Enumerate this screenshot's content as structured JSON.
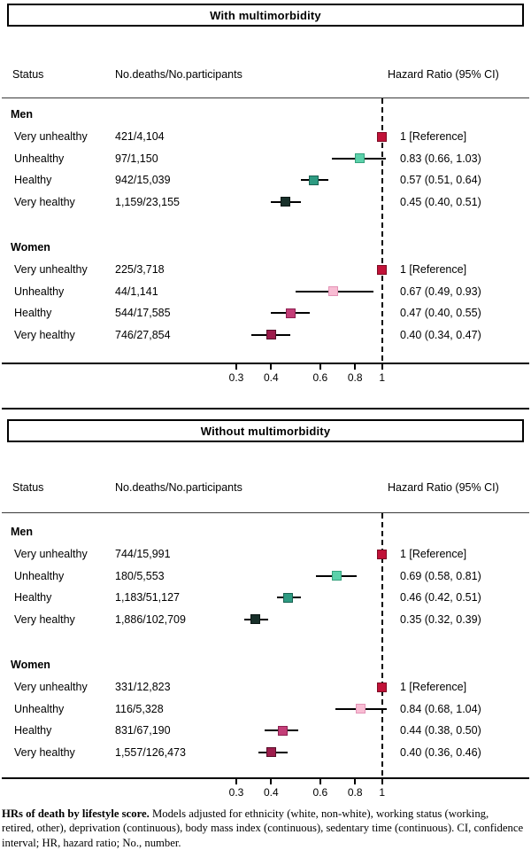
{
  "chart_data": {
    "type": "forest",
    "x_scale": "log",
    "x_axis": {
      "ticks": [
        0.3,
        0.4,
        0.6,
        0.8,
        1
      ],
      "tick_labels": [
        "0.3",
        "0.4",
        "0.6",
        "0.8",
        "1"
      ],
      "reference_line": 1
    },
    "columns": {
      "status": "Status",
      "counts": "No.deaths/No.participants",
      "hr": "Hazard Ratio (95% CI)"
    },
    "panels": [
      {
        "title": "With multimorbidity",
        "groups": [
          {
            "label": "Men",
            "rows": [
              {
                "status": "Very unhealthy",
                "counts": "421/4,104",
                "hr_label": "1 [Reference]",
                "hr": 1,
                "ci_low": null,
                "ci_high": null,
                "marker_fill": "#C11238",
                "marker_border": "#7E0B24"
              },
              {
                "status": "Unhealthy",
                "counts": "97/1,150",
                "hr_label": "0.83 (0.66, 1.03)",
                "hr": 0.83,
                "ci_low": 0.66,
                "ci_high": 1.03,
                "marker_fill": "#5BD1AA",
                "marker_border": "#36A27E"
              },
              {
                "status": "Healthy",
                "counts": "942/15,039",
                "hr_label": "0.57 (0.51, 0.64)",
                "hr": 0.57,
                "ci_low": 0.51,
                "ci_high": 0.64,
                "marker_fill": "#2E9B82",
                "marker_border": "#1B6353"
              },
              {
                "status": "Very healthy",
                "counts": "1,159/23,155",
                "hr_label": "0.45 (0.40, 0.51)",
                "hr": 0.45,
                "ci_low": 0.4,
                "ci_high": 0.51,
                "marker_fill": "#18302A",
                "marker_border": "#0A1714"
              }
            ]
          },
          {
            "label": "Women",
            "rows": [
              {
                "status": "Very unhealthy",
                "counts": "225/3,718",
                "hr_label": "1 [Reference]",
                "hr": 1,
                "ci_low": null,
                "ci_high": null,
                "marker_fill": "#C11238",
                "marker_border": "#7E0B24"
              },
              {
                "status": "Unhealthy",
                "counts": "44/1,141",
                "hr_label": "0.67 (0.49, 0.93)",
                "hr": 0.67,
                "ci_low": 0.49,
                "ci_high": 0.93,
                "marker_fill": "#F8BCD3",
                "marker_border": "#E393B6"
              },
              {
                "status": "Healthy",
                "counts": "544/17,585",
                "hr_label": "0.47 (0.40, 0.55)",
                "hr": 0.47,
                "ci_low": 0.4,
                "ci_high": 0.55,
                "marker_fill": "#C43E78",
                "marker_border": "#8E2051"
              },
              {
                "status": "Very healthy",
                "counts": "746/27,854",
                "hr_label": "0.40 (0.34, 0.47)",
                "hr": 0.4,
                "ci_low": 0.34,
                "ci_high": 0.47,
                "marker_fill": "#9D1C4C",
                "marker_border": "#570E29"
              }
            ]
          }
        ]
      },
      {
        "title": "Without multimorbidity",
        "groups": [
          {
            "label": "Men",
            "rows": [
              {
                "status": "Very unhealthy",
                "counts": "744/15,991",
                "hr_label": "1 [Reference]",
                "hr": 1,
                "ci_low": null,
                "ci_high": null,
                "marker_fill": "#C11238",
                "marker_border": "#7E0B24"
              },
              {
                "status": "Unhealthy",
                "counts": "180/5,553",
                "hr_label": "0.69 (0.58, 0.81)",
                "hr": 0.69,
                "ci_low": 0.58,
                "ci_high": 0.81,
                "marker_fill": "#5BD1AA",
                "marker_border": "#36A27E"
              },
              {
                "status": "Healthy",
                "counts": "1,183/51,127",
                "hr_label": "0.46 (0.42, 0.51)",
                "hr": 0.46,
                "ci_low": 0.42,
                "ci_high": 0.51,
                "marker_fill": "#2E9B82",
                "marker_border": "#1B6353"
              },
              {
                "status": "Very healthy",
                "counts": "1,886/102,709",
                "hr_label": "0.35 (0.32, 0.39)",
                "hr": 0.35,
                "ci_low": 0.32,
                "ci_high": 0.39,
                "marker_fill": "#18302A",
                "marker_border": "#0A1714"
              }
            ]
          },
          {
            "label": "Women",
            "rows": [
              {
                "status": "Very unhealthy",
                "counts": "331/12,823",
                "hr_label": "1 [Reference]",
                "hr": 1,
                "ci_low": null,
                "ci_high": null,
                "marker_fill": "#C11238",
                "marker_border": "#7E0B24"
              },
              {
                "status": "Unhealthy",
                "counts": "116/5,328",
                "hr_label": "0.84 (0.68, 1.04)",
                "hr": 0.84,
                "ci_low": 0.68,
                "ci_high": 1.04,
                "marker_fill": "#F8BCD3",
                "marker_border": "#E393B6"
              },
              {
                "status": "Healthy",
                "counts": "831/67,190",
                "hr_label": "0.44 (0.38, 0.50)",
                "hr": 0.44,
                "ci_low": 0.38,
                "ci_high": 0.5,
                "marker_fill": "#C43E78",
                "marker_border": "#8E2051"
              },
              {
                "status": "Very healthy",
                "counts": "1,557/126,473",
                "hr_label": "0.40 (0.36, 0.46)",
                "hr": 0.4,
                "ci_low": 0.36,
                "ci_high": 0.46,
                "marker_fill": "#9D1C4C",
                "marker_border": "#570E29"
              }
            ]
          }
        ]
      }
    ],
    "footnote": {
      "bold_lead": "HRs of death by lifestyle score.",
      "lines": [
        " Models adjusted for ethnicity (white, non-white), working status (working,",
        "retired, other), deprivation (continuous), body mass index (continuous), sedentary time (continuous). CI, confidence",
        "interval; HR, hazard ratio; No., number."
      ]
    }
  }
}
